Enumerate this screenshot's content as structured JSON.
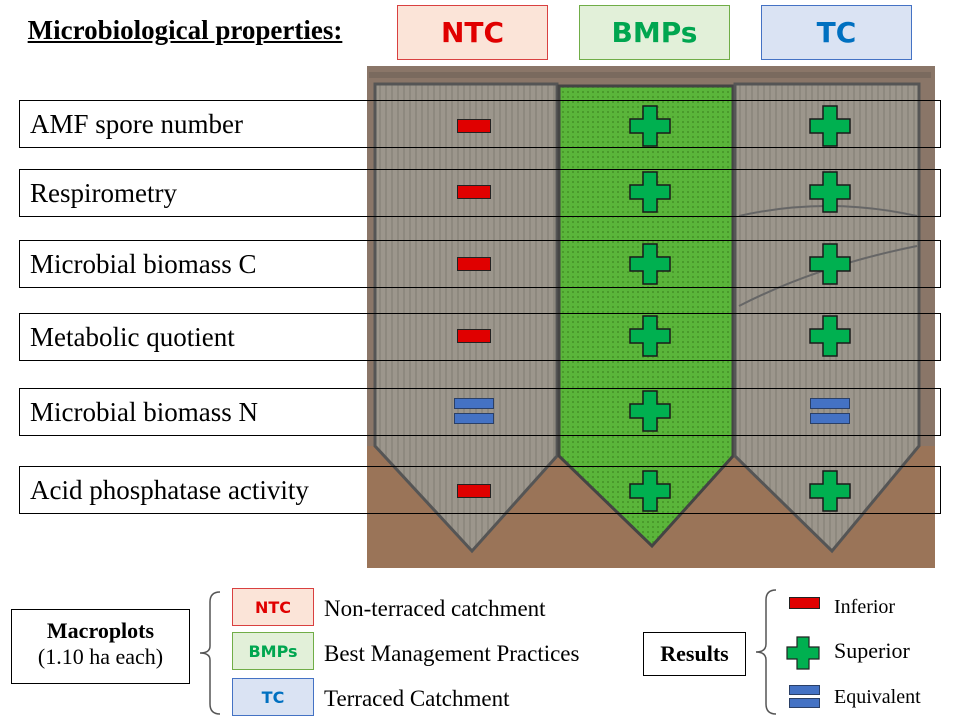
{
  "title": "Microbiological properties:",
  "treatments": [
    {
      "label": "NTC",
      "color": "#e00000",
      "bg": "#fbe4d8",
      "border": "#d94040",
      "full": "Non-terraced catchment"
    },
    {
      "label": "BMPs",
      "color": "#00a650",
      "bg": "#e2f0d9",
      "border": "#70ad47",
      "full": "Best Management Practices"
    },
    {
      "label": "TC",
      "color": "#0070c0",
      "bg": "#dae3f3",
      "border": "#4472c4",
      "full": "Terraced Catchment"
    }
  ],
  "rows": [
    {
      "label": "AMF spore number",
      "results": [
        "inferior",
        "superior",
        "superior"
      ]
    },
    {
      "label": "Respirometry",
      "results": [
        "inferior",
        "superior",
        "superior"
      ]
    },
    {
      "label": "Microbial biomass C",
      "results": [
        "inferior",
        "superior",
        "superior"
      ]
    },
    {
      "label": "Metabolic quotient",
      "results": [
        "inferior",
        "superior",
        "superior"
      ]
    },
    {
      "label": "Microbial biomass N",
      "results": [
        "equivalent",
        "superior",
        "equivalent"
      ]
    },
    {
      "label": "Acid phosphatase activity",
      "results": [
        "inferior",
        "superior",
        "superior"
      ]
    }
  ],
  "macroplots": {
    "title": "Macroplots",
    "subtitle": "(1.10 ha each)"
  },
  "results_legend": {
    "title": "Results",
    "items": [
      {
        "key": "inferior",
        "label": "Inferior"
      },
      {
        "key": "superior",
        "label": "Superior"
      },
      {
        "key": "equivalent",
        "label": "Equivalent"
      }
    ]
  },
  "colors": {
    "inferior": "#e00000",
    "superior": "#00b050",
    "equivalent": "#4472c4"
  }
}
